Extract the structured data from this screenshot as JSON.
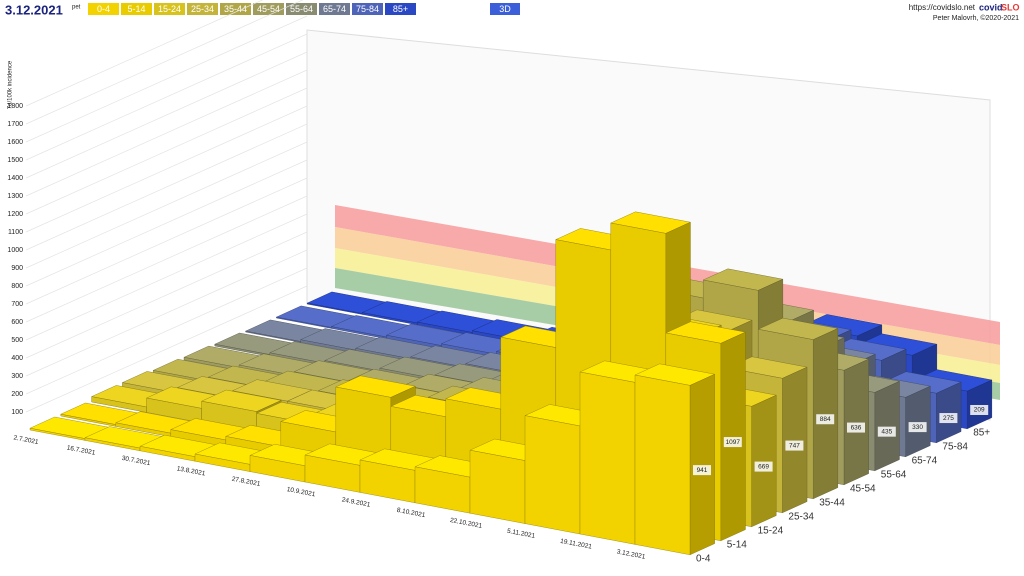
{
  "header": {
    "date": "3.12.2021",
    "weekday": "pet",
    "view_button": "3D",
    "url": "https://covidslo.net",
    "brand_a": "covid",
    "brand_b": "SLO",
    "author": "Peter Malovrh, ©2020-2021"
  },
  "chart_data": {
    "type": "bar3d",
    "y_label": "7d/100k incidence",
    "x": [
      "2.7.2021",
      "16.7.2021",
      "30.7.2021",
      "13.8.2021",
      "27.8.2021",
      "10.9.2021",
      "24.9.2021",
      "8.10.2021",
      "22.10.2021",
      "5.11.2021",
      "19.11.2021",
      "3.12.2021"
    ],
    "ylim": [
      0,
      1800
    ],
    "yticks": [
      100,
      200,
      300,
      400,
      500,
      600,
      700,
      800,
      900,
      1000,
      1100,
      1200,
      1300,
      1400,
      1500,
      1600,
      1700,
      1800
    ],
    "series": [
      {
        "name": "0-4",
        "color": "#f2d300",
        "values": [
          10,
          15,
          25,
          40,
          90,
          150,
          180,
          200,
          350,
          600,
          900,
          941
        ]
      },
      {
        "name": "5-14",
        "color": "#e9cc00",
        "values": [
          10,
          20,
          40,
          60,
          200,
          450,
          400,
          500,
          900,
          1500,
          1650,
          1097
        ]
      },
      {
        "name": "15-24",
        "color": "#d8c21c",
        "values": [
          30,
          80,
          120,
          110,
          160,
          200,
          220,
          260,
          600,
          1000,
          1000,
          669
        ]
      },
      {
        "name": "25-34",
        "color": "#c4b43a",
        "values": [
          30,
          60,
          100,
          100,
          130,
          170,
          200,
          230,
          500,
          900,
          950,
          747
        ]
      },
      {
        "name": "35-44",
        "color": "#b0a648",
        "values": [
          20,
          40,
          70,
          80,
          110,
          160,
          190,
          230,
          550,
          1000,
          1100,
          884
        ]
      },
      {
        "name": "45-54",
        "color": "#a09c5e",
        "values": [
          15,
          30,
          50,
          60,
          90,
          130,
          160,
          200,
          450,
          850,
          850,
          636
        ]
      },
      {
        "name": "55-64",
        "color": "#8a8c72",
        "values": [
          10,
          20,
          35,
          50,
          70,
          100,
          120,
          170,
          380,
          650,
          620,
          435
        ]
      },
      {
        "name": "65-74",
        "color": "#6f7a92",
        "values": [
          5,
          15,
          25,
          35,
          55,
          80,
          100,
          140,
          320,
          500,
          450,
          330
        ]
      },
      {
        "name": "75-84",
        "color": "#4e64b8",
        "values": [
          5,
          10,
          20,
          30,
          45,
          70,
          90,
          130,
          300,
          450,
          400,
          275
        ]
      },
      {
        "name": "85+",
        "color": "#2a48c4",
        "values": [
          5,
          10,
          15,
          25,
          40,
          60,
          80,
          120,
          280,
          400,
          350,
          209
        ]
      }
    ]
  }
}
